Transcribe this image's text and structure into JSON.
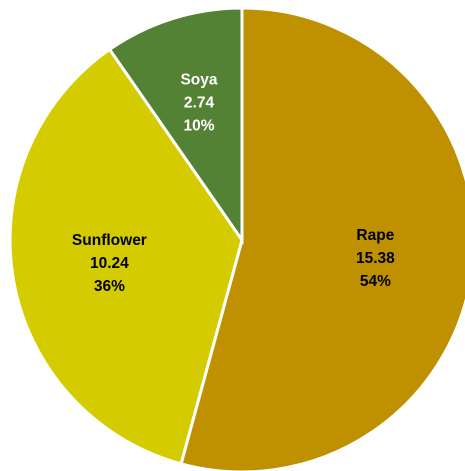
{
  "chart_data": {
    "type": "pie",
    "title": "",
    "legend": "none",
    "slices": [
      {
        "label": "Rape",
        "value": 15.38,
        "value_label": "15.38",
        "percent_label": "54%",
        "color": "#BF9000",
        "text_color": "#000000"
      },
      {
        "label": "Sunflower",
        "value": 10.24,
        "value_label": "10.24",
        "percent_label": "36%",
        "color": "#D4CC00",
        "text_color": "#000000"
      },
      {
        "label": "Soya",
        "value": 2.74,
        "value_label": "2.74",
        "percent_label": "10%",
        "color": "#548235",
        "text_color": "#FFFFFF"
      }
    ]
  }
}
